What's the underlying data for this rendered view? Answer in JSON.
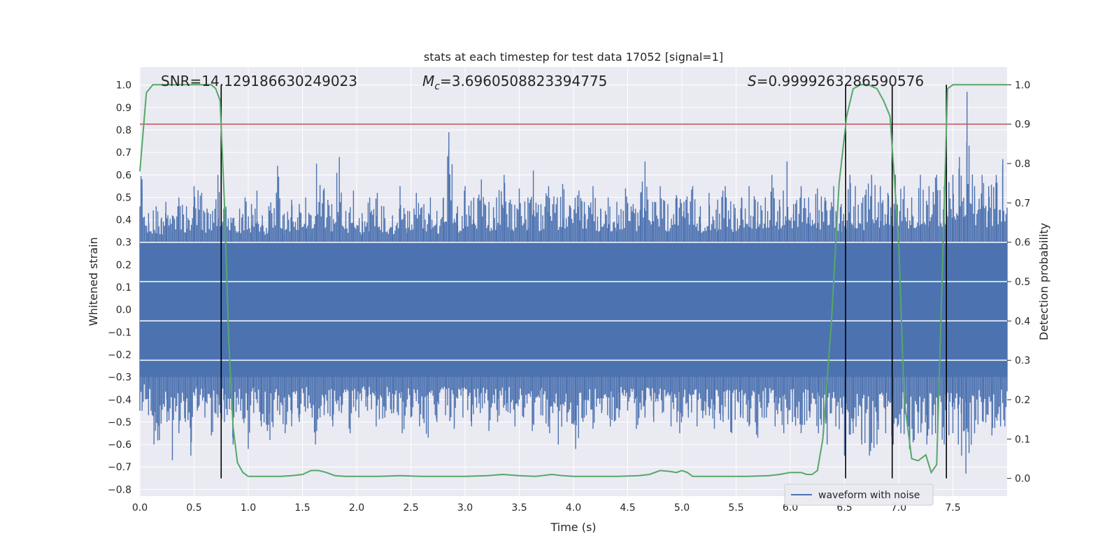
{
  "chart_data": {
    "type": "line",
    "title": "stats at each timestep for test data 17052 [signal=1]",
    "xlabel": "Time (s)",
    "ylabel": "Whitened strain",
    "y2label": "Detection probability",
    "xlim": [
      0.0,
      8.0
    ],
    "ylim": [
      -0.83,
      1.08
    ],
    "y2lim": [
      -0.045,
      1.045
    ],
    "xticks": [
      "0.0",
      "0.5",
      "1.0",
      "1.5",
      "2.0",
      "2.5",
      "3.0",
      "3.5",
      "4.0",
      "4.5",
      "5.0",
      "5.5",
      "6.0",
      "6.5",
      "7.0",
      "7.5"
    ],
    "yticks": [
      "-0.8",
      "-0.7",
      "-0.6",
      "-0.5",
      "-0.4",
      "-0.3",
      "-0.2",
      "-0.1",
      "0.0",
      "0.1",
      "0.2",
      "0.3",
      "0.4",
      "0.5",
      "0.6",
      "0.7",
      "0.8",
      "0.9",
      "1.0"
    ],
    "y2ticks": [
      "0.0",
      "0.1",
      "0.2",
      "0.3",
      "0.4",
      "0.5",
      "0.6",
      "0.7",
      "0.8",
      "0.9",
      "1.0"
    ],
    "grid": true,
    "legend_position": "lower-right",
    "annotations": {
      "snr": "SNR=14.129186630249023",
      "mc_symbol": "M",
      "mc_sub": "c",
      "mc_value": "=3.6960508823394775",
      "s_symbol": "S",
      "s_value": "=0.9999263286590576"
    },
    "threshold": {
      "value": 0.9,
      "axis": "right",
      "color": "#c44e52"
    },
    "vertical_markers": [
      0.75,
      6.51,
      6.94,
      7.44
    ],
    "white_hlines_y": [
      0.3,
      0.125,
      -0.05,
      -0.225
    ],
    "series": [
      {
        "name": "waveform with noise",
        "axis": "left",
        "color": "#4c72b0",
        "band": {
          "lower": -0.3,
          "upper": 0.3
        },
        "peaks_up": [
          [
            0.02,
            0.58
          ],
          [
            0.08,
            0.43
          ],
          [
            0.15,
            0.46
          ],
          [
            0.2,
            0.41
          ],
          [
            0.24,
            0.48
          ],
          [
            0.3,
            0.42
          ],
          [
            0.36,
            0.5
          ],
          [
            0.43,
            0.46
          ],
          [
            0.5,
            0.55
          ],
          [
            0.57,
            0.52
          ],
          [
            0.62,
            0.45
          ],
          [
            0.67,
            0.44
          ],
          [
            0.72,
            0.6
          ],
          [
            0.84,
            0.41
          ],
          [
            0.92,
            0.45
          ],
          [
            0.97,
            0.5
          ],
          [
            1.03,
            0.47
          ],
          [
            1.08,
            0.53
          ],
          [
            1.13,
            0.42
          ],
          [
            1.19,
            0.46
          ],
          [
            1.27,
            0.64
          ],
          [
            1.32,
            0.42
          ],
          [
            1.4,
            0.49
          ],
          [
            1.47,
            0.47
          ],
          [
            1.53,
            0.5
          ],
          [
            1.58,
            0.42
          ],
          [
            1.63,
            0.65
          ],
          [
            1.7,
            0.54
          ],
          [
            1.77,
            0.47
          ],
          [
            1.84,
            0.68
          ],
          [
            1.9,
            0.44
          ],
          [
            1.97,
            0.53
          ],
          [
            2.05,
            0.43
          ],
          [
            2.12,
            0.5
          ],
          [
            2.19,
            0.52
          ],
          [
            2.25,
            0.46
          ],
          [
            2.33,
            0.42
          ],
          [
            2.4,
            0.55
          ],
          [
            2.47,
            0.44
          ],
          [
            2.55,
            0.52
          ],
          [
            2.62,
            0.47
          ],
          [
            2.68,
            0.5
          ],
          [
            2.74,
            0.44
          ],
          [
            2.8,
            0.5
          ],
          [
            2.85,
            0.79
          ],
          [
            2.93,
            0.46
          ],
          [
            3.0,
            0.55
          ],
          [
            3.08,
            0.5
          ],
          [
            3.15,
            0.58
          ],
          [
            3.22,
            0.48
          ],
          [
            3.29,
            0.5
          ],
          [
            3.36,
            0.6
          ],
          [
            3.43,
            0.47
          ],
          [
            3.5,
            0.54
          ],
          [
            3.58,
            0.5
          ],
          [
            3.63,
            0.62
          ],
          [
            3.7,
            0.47
          ],
          [
            3.77,
            0.55
          ],
          [
            3.85,
            0.5
          ],
          [
            3.9,
            0.56
          ],
          [
            3.97,
            0.46
          ],
          [
            4.05,
            0.53
          ],
          [
            4.1,
            0.48
          ],
          [
            4.18,
            0.55
          ],
          [
            4.25,
            0.45
          ],
          [
            4.32,
            0.5
          ],
          [
            4.4,
            0.48
          ],
          [
            4.48,
            0.54
          ],
          [
            4.55,
            0.47
          ],
          [
            4.62,
            0.52
          ],
          [
            4.66,
            0.66
          ],
          [
            4.73,
            0.48
          ],
          [
            4.8,
            0.55
          ],
          [
            4.87,
            0.47
          ],
          [
            4.95,
            0.51
          ],
          [
            5.02,
            0.48
          ],
          [
            5.1,
            0.55
          ],
          [
            5.17,
            0.46
          ],
          [
            5.25,
            0.52
          ],
          [
            5.33,
            0.49
          ],
          [
            5.4,
            0.55
          ],
          [
            5.48,
            0.47
          ],
          [
            5.55,
            0.5
          ],
          [
            5.62,
            0.55
          ],
          [
            5.7,
            0.48
          ],
          [
            5.77,
            0.5
          ],
          [
            5.83,
            0.6
          ],
          [
            5.9,
            0.49
          ],
          [
            5.97,
            0.66
          ],
          [
            6.03,
            0.47
          ],
          [
            6.1,
            0.55
          ],
          [
            6.17,
            0.5
          ],
          [
            6.25,
            0.54
          ],
          [
            6.32,
            0.5
          ],
          [
            6.4,
            0.55
          ],
          [
            6.47,
            0.47
          ],
          [
            6.55,
            0.6
          ],
          [
            6.6,
            0.55
          ],
          [
            6.67,
            0.5
          ],
          [
            6.75,
            0.6
          ],
          [
            6.83,
            0.55
          ],
          [
            6.9,
            0.52
          ],
          [
            6.97,
            0.6
          ],
          [
            7.05,
            0.55
          ],
          [
            7.12,
            0.5
          ],
          [
            7.2,
            0.6
          ],
          [
            7.28,
            0.55
          ],
          [
            7.35,
            0.6
          ],
          [
            7.42,
            0.55
          ],
          [
            7.5,
            0.6
          ],
          [
            7.56,
            0.68
          ],
          [
            7.6,
            0.5
          ],
          [
            7.63,
            0.97
          ],
          [
            7.7,
            0.55
          ],
          [
            7.77,
            0.6
          ],
          [
            7.83,
            0.55
          ],
          [
            7.9,
            0.6
          ],
          [
            7.96,
            0.67
          ]
        ],
        "peaks_down": [
          [
            0.03,
            -0.41
          ],
          [
            0.08,
            -0.47
          ],
          [
            0.13,
            -0.6
          ],
          [
            0.18,
            -0.58
          ],
          [
            0.25,
            -0.5
          ],
          [
            0.3,
            -0.67
          ],
          [
            0.36,
            -0.55
          ],
          [
            0.42,
            -0.5
          ],
          [
            0.47,
            -0.65
          ],
          [
            0.53,
            -0.45
          ],
          [
            0.6,
            -0.48
          ],
          [
            0.66,
            -0.56
          ],
          [
            0.72,
            -0.48
          ],
          [
            0.78,
            -0.5
          ],
          [
            0.86,
            -0.6
          ],
          [
            0.93,
            -0.45
          ],
          [
            1.0,
            -0.62
          ],
          [
            1.05,
            -0.46
          ],
          [
            1.12,
            -0.52
          ],
          [
            1.2,
            -0.58
          ],
          [
            1.27,
            -0.45
          ],
          [
            1.34,
            -0.55
          ],
          [
            1.4,
            -0.52
          ],
          [
            1.47,
            -0.5
          ],
          [
            1.55,
            -0.44
          ],
          [
            1.62,
            -0.6
          ],
          [
            1.7,
            -0.47
          ],
          [
            1.78,
            -0.52
          ],
          [
            1.86,
            -0.46
          ],
          [
            1.94,
            -0.55
          ],
          [
            2.02,
            -0.48
          ],
          [
            2.1,
            -0.45
          ],
          [
            2.18,
            -0.52
          ],
          [
            2.26,
            -0.48
          ],
          [
            2.34,
            -0.46
          ],
          [
            2.42,
            -0.55
          ],
          [
            2.5,
            -0.48
          ],
          [
            2.58,
            -0.52
          ],
          [
            2.66,
            -0.57
          ],
          [
            2.74,
            -0.5
          ],
          [
            2.82,
            -0.47
          ],
          [
            2.9,
            -0.53
          ],
          [
            2.98,
            -0.48
          ],
          [
            3.06,
            -0.52
          ],
          [
            3.14,
            -0.46
          ],
          [
            3.22,
            -0.54
          ],
          [
            3.3,
            -0.5
          ],
          [
            3.38,
            -0.45
          ],
          [
            3.46,
            -0.52
          ],
          [
            3.54,
            -0.48
          ],
          [
            3.62,
            -0.54
          ],
          [
            3.7,
            -0.47
          ],
          [
            3.78,
            -0.55
          ],
          [
            3.86,
            -0.6
          ],
          [
            3.94,
            -0.5
          ],
          [
            4.02,
            -0.62
          ],
          [
            4.1,
            -0.48
          ],
          [
            4.18,
            -0.53
          ],
          [
            4.26,
            -0.46
          ],
          [
            4.34,
            -0.52
          ],
          [
            4.42,
            -0.48
          ],
          [
            4.5,
            -0.45
          ],
          [
            4.58,
            -0.53
          ],
          [
            4.66,
            -0.48
          ],
          [
            4.74,
            -0.5
          ],
          [
            4.82,
            -0.46
          ],
          [
            4.9,
            -0.52
          ],
          [
            4.98,
            -0.55
          ],
          [
            5.06,
            -0.48
          ],
          [
            5.14,
            -0.52
          ],
          [
            5.22,
            -0.47
          ],
          [
            5.3,
            -0.53
          ],
          [
            5.38,
            -0.5
          ],
          [
            5.46,
            -0.55
          ],
          [
            5.54,
            -0.48
          ],
          [
            5.62,
            -0.52
          ],
          [
            5.7,
            -0.57
          ],
          [
            5.78,
            -0.48
          ],
          [
            5.86,
            -0.52
          ],
          [
            5.94,
            -0.55
          ],
          [
            6.02,
            -0.5
          ],
          [
            6.1,
            -0.55
          ],
          [
            6.18,
            -0.48
          ],
          [
            6.26,
            -0.55
          ],
          [
            6.34,
            -0.6
          ],
          [
            6.42,
            -0.52
          ],
          [
            6.5,
            -0.65
          ],
          [
            6.58,
            -0.55
          ],
          [
            6.66,
            -0.6
          ],
          [
            6.73,
            -0.65
          ],
          [
            6.8,
            -0.6
          ],
          [
            6.88,
            -0.55
          ],
          [
            6.95,
            -0.6
          ],
          [
            7.02,
            -0.55
          ],
          [
            7.1,
            -0.62
          ],
          [
            7.18,
            -0.55
          ],
          [
            7.26,
            -0.6
          ],
          [
            7.34,
            -0.55
          ],
          [
            7.42,
            -0.6
          ],
          [
            7.5,
            -0.55
          ],
          [
            7.55,
            -0.6
          ],
          [
            7.58,
            -0.65
          ],
          [
            7.62,
            -0.73
          ],
          [
            7.7,
            -0.55
          ],
          [
            7.78,
            -0.5
          ],
          [
            7.86,
            -0.56
          ],
          [
            7.94,
            -0.52
          ]
        ]
      },
      {
        "name": "",
        "axis": "right",
        "color": "#55a868",
        "x": [
          0.0,
          0.06,
          0.12,
          0.2,
          0.3,
          0.4,
          0.5,
          0.6,
          0.66,
          0.7,
          0.74,
          0.78,
          0.82,
          0.86,
          0.9,
          0.95,
          1.0,
          1.1,
          1.2,
          1.3,
          1.4,
          1.5,
          1.58,
          1.65,
          1.72,
          1.8,
          1.9,
          2.0,
          2.2,
          2.4,
          2.6,
          2.8,
          3.0,
          3.2,
          3.35,
          3.5,
          3.65,
          3.8,
          3.9,
          4.0,
          4.2,
          4.4,
          4.6,
          4.7,
          4.8,
          4.88,
          4.95,
          5.0,
          5.05,
          5.1,
          5.2,
          5.4,
          5.6,
          5.8,
          5.9,
          6.0,
          6.05,
          6.1,
          6.15,
          6.2,
          6.25,
          6.3,
          6.38,
          6.45,
          6.52,
          6.58,
          6.65,
          6.72,
          6.8,
          6.86,
          6.92,
          7.0,
          7.05,
          7.12,
          7.18,
          7.25,
          7.3,
          7.35,
          7.4,
          7.45,
          7.5,
          7.55,
          7.6,
          7.7,
          7.8,
          7.9,
          8.0
        ],
        "y": [
          0.78,
          0.98,
          1.0,
          1.0,
          1.0,
          1.0,
          1.0,
          1.0,
          1.0,
          0.99,
          0.96,
          0.7,
          0.35,
          0.13,
          0.04,
          0.015,
          0.005,
          0.005,
          0.005,
          0.005,
          0.007,
          0.01,
          0.02,
          0.02,
          0.015,
          0.007,
          0.005,
          0.005,
          0.005,
          0.007,
          0.005,
          0.005,
          0.005,
          0.007,
          0.01,
          0.007,
          0.005,
          0.01,
          0.007,
          0.005,
          0.005,
          0.005,
          0.007,
          0.01,
          0.02,
          0.018,
          0.015,
          0.02,
          0.015,
          0.005,
          0.005,
          0.005,
          0.005,
          0.007,
          0.01,
          0.015,
          0.015,
          0.015,
          0.01,
          0.01,
          0.02,
          0.1,
          0.4,
          0.75,
          0.92,
          0.99,
          1.0,
          1.0,
          0.99,
          0.96,
          0.92,
          0.6,
          0.2,
          0.05,
          0.045,
          0.06,
          0.015,
          0.035,
          0.5,
          0.99,
          1.0,
          1.0,
          1.0,
          1.0,
          1.0,
          1.0,
          1.0
        ]
      }
    ]
  }
}
